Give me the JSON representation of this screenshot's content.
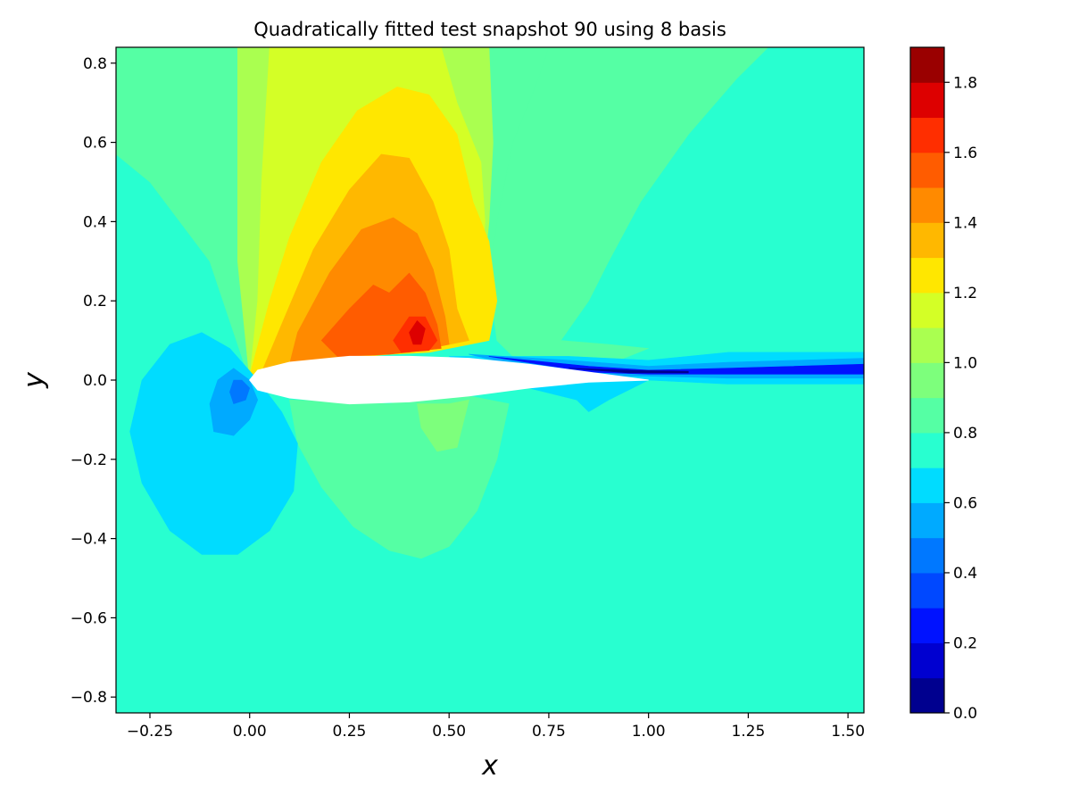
{
  "chart_data": {
    "type": "heatmap",
    "subtype": "filled-contour",
    "title": "Quadratically fitted test snapshot 90 using 8 basis",
    "xlabel": "x",
    "ylabel": "y",
    "xlim": [
      -0.335,
      1.54
    ],
    "ylim": [
      -0.84,
      0.84
    ],
    "x_ticks": [
      -0.25,
      0.0,
      0.25,
      0.5,
      0.75,
      1.0,
      1.25,
      1.5
    ],
    "x_tick_labels": [
      "−0.25",
      "0.00",
      "0.25",
      "0.50",
      "0.75",
      "1.00",
      "1.25",
      "1.50"
    ],
    "y_ticks": [
      0.8,
      0.6,
      0.4,
      0.2,
      0.0,
      -0.2,
      -0.4,
      -0.6,
      -0.8
    ],
    "y_tick_labels": [
      "0.8",
      "0.6",
      "0.4",
      "0.2",
      "0.0",
      "−0.2",
      "−0.4",
      "−0.6",
      "−0.8"
    ],
    "colormap": "jet",
    "colorbar": {
      "range": [
        0.0,
        1.9
      ],
      "levels": 19,
      "ticks": [
        0.0,
        0.2,
        0.4,
        0.6,
        0.8,
        1.0,
        1.2,
        1.4,
        1.6,
        1.8
      ],
      "tick_labels": [
        "0.0",
        "0.2",
        "0.4",
        "0.6",
        "0.8",
        "1.0",
        "1.2",
        "1.4",
        "1.6",
        "1.8"
      ],
      "colors": [
        "#00008f",
        "#0000d0",
        "#0012ff",
        "#0048ff",
        "#0078ff",
        "#00aaff",
        "#00dcff",
        "#28ffd0",
        "#55ffa4",
        "#7dff7c",
        "#aaff50",
        "#d4ff26",
        "#ffe700",
        "#ffb800",
        "#ff8a00",
        "#ff5c00",
        "#ff2e00",
        "#dd0000",
        "#9a0000"
      ]
    },
    "background_value": 0.75,
    "regions": [
      {
        "name": "upper-left-band",
        "value": 0.85,
        "points": [
          [
            -0.335,
            0.84
          ],
          [
            0.75,
            0.84
          ],
          [
            0.72,
            0.6
          ],
          [
            0.66,
            0.4
          ],
          [
            0.62,
            0.2
          ],
          [
            0.5,
            0.1
          ],
          [
            0.3,
            0.06
          ],
          [
            0.1,
            0.03
          ],
          [
            0.0,
            0.0
          ],
          [
            -0.1,
            0.3
          ],
          [
            -0.25,
            0.5
          ],
          [
            -0.335,
            0.57
          ]
        ]
      },
      {
        "name": "upper-right-band",
        "value": 0.85,
        "points": [
          [
            0.75,
            0.84
          ],
          [
            1.3,
            0.84
          ],
          [
            1.22,
            0.76
          ],
          [
            1.1,
            0.62
          ],
          [
            0.98,
            0.45
          ],
          [
            0.9,
            0.3
          ],
          [
            0.85,
            0.2
          ],
          [
            0.78,
            0.1
          ],
          [
            0.9,
            0.09
          ],
          [
            1.0,
            0.08
          ],
          [
            0.9,
            0.04
          ],
          [
            0.7,
            0.02
          ],
          [
            0.62,
            0.1
          ],
          [
            0.6,
            0.25
          ],
          [
            0.62,
            0.4
          ],
          [
            0.66,
            0.6
          ],
          [
            0.72,
            0.75
          ]
        ]
      },
      {
        "name": "lower-wake-band",
        "value": 0.85,
        "points": [
          [
            0.35,
            -0.06
          ],
          [
            0.45,
            -0.04
          ],
          [
            0.55,
            -0.04
          ],
          [
            0.65,
            -0.06
          ],
          [
            0.62,
            -0.2
          ],
          [
            0.57,
            -0.33
          ],
          [
            0.5,
            -0.42
          ],
          [
            0.43,
            -0.45
          ],
          [
            0.35,
            -0.43
          ],
          [
            0.26,
            -0.37
          ],
          [
            0.18,
            -0.27
          ],
          [
            0.12,
            -0.16
          ],
          [
            0.1,
            -0.05
          ]
        ]
      },
      {
        "name": "lower-mid-band",
        "value": 0.95,
        "points": [
          [
            0.42,
            -0.06
          ],
          [
            0.5,
            -0.06
          ],
          [
            0.55,
            -0.05
          ],
          [
            0.52,
            -0.17
          ],
          [
            0.47,
            -0.18
          ],
          [
            0.43,
            -0.12
          ]
        ]
      },
      {
        "name": "upper-mid-band",
        "value": 1.05,
        "points": [
          [
            -0.03,
            0.84
          ],
          [
            0.6,
            0.84
          ],
          [
            0.61,
            0.6
          ],
          [
            0.6,
            0.4
          ],
          [
            0.58,
            0.2
          ],
          [
            0.55,
            0.1
          ],
          [
            0.4,
            0.07
          ],
          [
            0.2,
            0.05
          ],
          [
            0.05,
            0.02
          ],
          [
            0.0,
            0.0
          ],
          [
            -0.03,
            0.3
          ]
        ]
      },
      {
        "name": "upper-high-band",
        "value": 1.15,
        "points": [
          [
            0.05,
            0.84
          ],
          [
            0.48,
            0.84
          ],
          [
            0.52,
            0.7
          ],
          [
            0.58,
            0.55
          ],
          [
            0.59,
            0.4
          ],
          [
            0.58,
            0.25
          ],
          [
            0.55,
            0.1
          ],
          [
            0.35,
            0.07
          ],
          [
            0.15,
            0.05
          ],
          [
            0.05,
            0.03
          ],
          [
            0.0,
            0.0
          ],
          [
            0.02,
            0.2
          ],
          [
            0.03,
            0.5
          ]
        ]
      },
      {
        "name": "upper-yellow",
        "value": 1.25,
        "points": [
          [
            0.05,
            0.2
          ],
          [
            0.1,
            0.36
          ],
          [
            0.18,
            0.55
          ],
          [
            0.27,
            0.68
          ],
          [
            0.37,
            0.74
          ],
          [
            0.45,
            0.72
          ],
          [
            0.52,
            0.62
          ],
          [
            0.56,
            0.45
          ],
          [
            0.6,
            0.35
          ],
          [
            0.62,
            0.2
          ],
          [
            0.6,
            0.1
          ],
          [
            0.45,
            0.07
          ],
          [
            0.25,
            0.06
          ],
          [
            0.08,
            0.03
          ],
          [
            0.0,
            0.01
          ]
        ]
      },
      {
        "name": "upper-orange-light",
        "value": 1.35,
        "points": [
          [
            0.08,
            0.14
          ],
          [
            0.16,
            0.33
          ],
          [
            0.25,
            0.48
          ],
          [
            0.33,
            0.57
          ],
          [
            0.4,
            0.56
          ],
          [
            0.46,
            0.45
          ],
          [
            0.5,
            0.33
          ],
          [
            0.52,
            0.18
          ],
          [
            0.55,
            0.1
          ],
          [
            0.45,
            0.08
          ],
          [
            0.3,
            0.06
          ],
          [
            0.12,
            0.04
          ],
          [
            0.03,
            0.02
          ]
        ]
      },
      {
        "name": "upper-orange",
        "value": 1.45,
        "points": [
          [
            0.12,
            0.12
          ],
          [
            0.2,
            0.27
          ],
          [
            0.28,
            0.38
          ],
          [
            0.36,
            0.41
          ],
          [
            0.42,
            0.37
          ],
          [
            0.46,
            0.28
          ],
          [
            0.49,
            0.16
          ],
          [
            0.5,
            0.09
          ],
          [
            0.4,
            0.07
          ],
          [
            0.25,
            0.06
          ],
          [
            0.1,
            0.04
          ]
        ]
      },
      {
        "name": "upper-orange-dark",
        "value": 1.55,
        "points": [
          [
            0.18,
            0.1
          ],
          [
            0.25,
            0.18
          ],
          [
            0.31,
            0.24
          ],
          [
            0.35,
            0.22
          ],
          [
            0.4,
            0.27
          ],
          [
            0.44,
            0.22
          ],
          [
            0.47,
            0.14
          ],
          [
            0.48,
            0.08
          ],
          [
            0.35,
            0.065
          ],
          [
            0.22,
            0.06
          ]
        ]
      },
      {
        "name": "upper-red",
        "value": 1.65,
        "points": [
          [
            0.36,
            0.1
          ],
          [
            0.4,
            0.16
          ],
          [
            0.44,
            0.16
          ],
          [
            0.47,
            0.1
          ],
          [
            0.45,
            0.075
          ],
          [
            0.38,
            0.07
          ]
        ]
      },
      {
        "name": "upper-dark-red",
        "value": 1.75,
        "points": [
          [
            0.4,
            0.12
          ],
          [
            0.42,
            0.15
          ],
          [
            0.44,
            0.13
          ],
          [
            0.43,
            0.09
          ],
          [
            0.41,
            0.09
          ]
        ]
      },
      {
        "name": "leading-edge-lobe",
        "value": 0.65,
        "points": [
          [
            -0.12,
            0.12
          ],
          [
            -0.05,
            0.08
          ],
          [
            0.02,
            0.0
          ],
          [
            0.08,
            -0.08
          ],
          [
            0.12,
            -0.16
          ],
          [
            0.11,
            -0.28
          ],
          [
            0.05,
            -0.38
          ],
          [
            -0.03,
            -0.44
          ],
          [
            -0.12,
            -0.44
          ],
          [
            -0.2,
            -0.38
          ],
          [
            -0.27,
            -0.26
          ],
          [
            -0.3,
            -0.13
          ],
          [
            -0.27,
            0.0
          ],
          [
            -0.2,
            0.09
          ]
        ]
      },
      {
        "name": "leading-edge-core",
        "value": 0.55,
        "points": [
          [
            -0.04,
            0.03
          ],
          [
            0.0,
            0.0
          ],
          [
            0.02,
            -0.05
          ],
          [
            0.0,
            -0.1
          ],
          [
            -0.04,
            -0.14
          ],
          [
            -0.09,
            -0.13
          ],
          [
            -0.1,
            -0.06
          ],
          [
            -0.08,
            0.0
          ]
        ]
      },
      {
        "name": "leading-edge-center",
        "value": 0.45,
        "points": [
          [
            -0.02,
            0.0
          ],
          [
            0.0,
            -0.02
          ],
          [
            -0.01,
            -0.05
          ],
          [
            -0.04,
            -0.06
          ],
          [
            -0.05,
            -0.03
          ],
          [
            -0.04,
            0.0
          ]
        ]
      },
      {
        "name": "wake-light",
        "value": 0.65,
        "points": [
          [
            0.5,
            0.06
          ],
          [
            0.8,
            0.06
          ],
          [
            1.0,
            0.05
          ],
          [
            1.2,
            0.07
          ],
          [
            1.54,
            0.07
          ],
          [
            1.54,
            -0.01
          ],
          [
            1.2,
            -0.01
          ],
          [
            1.0,
            0.0
          ],
          [
            0.9,
            -0.05
          ],
          [
            0.85,
            -0.08
          ],
          [
            0.82,
            -0.05
          ],
          [
            0.7,
            -0.02
          ],
          [
            0.6,
            0.0
          ]
        ]
      },
      {
        "name": "wake-mid",
        "value": 0.55,
        "points": [
          [
            0.55,
            0.065
          ],
          [
            0.8,
            0.05
          ],
          [
            1.0,
            0.035
          ],
          [
            1.2,
            0.045
          ],
          [
            1.54,
            0.055
          ],
          [
            1.54,
            0.005
          ],
          [
            1.2,
            0.005
          ],
          [
            1.0,
            0.01
          ],
          [
            0.9,
            0.01
          ],
          [
            0.7,
            0.03
          ]
        ]
      },
      {
        "name": "wake-core",
        "value": 0.25,
        "points": [
          [
            0.6,
            0.06
          ],
          [
            0.85,
            0.035
          ],
          [
            1.0,
            0.025
          ],
          [
            1.2,
            0.03
          ],
          [
            1.54,
            0.04
          ],
          [
            1.54,
            0.015
          ],
          [
            1.2,
            0.015
          ],
          [
            1.0,
            0.015
          ],
          [
            0.85,
            0.02
          ]
        ]
      },
      {
        "name": "wake-deep",
        "value": 0.05,
        "points": [
          [
            0.8,
            0.03
          ],
          [
            0.95,
            0.025
          ],
          [
            1.1,
            0.022
          ],
          [
            1.1,
            0.018
          ],
          [
            0.95,
            0.018
          ]
        ]
      }
    ],
    "airfoil": {
      "leading_edge": [
        0.0,
        0.0
      ],
      "trailing_edge": [
        1.0,
        0.0
      ],
      "upper": [
        [
          0.02,
          0.025
        ],
        [
          0.1,
          0.045
        ],
        [
          0.25,
          0.06
        ],
        [
          0.4,
          0.06
        ],
        [
          0.55,
          0.055
        ],
        [
          0.7,
          0.04
        ],
        [
          0.85,
          0.02
        ]
      ],
      "lower": [
        [
          0.85,
          -0.005
        ],
        [
          0.7,
          -0.02
        ],
        [
          0.55,
          -0.04
        ],
        [
          0.4,
          -0.055
        ],
        [
          0.25,
          -0.06
        ],
        [
          0.1,
          -0.045
        ],
        [
          0.02,
          -0.025
        ]
      ]
    }
  }
}
